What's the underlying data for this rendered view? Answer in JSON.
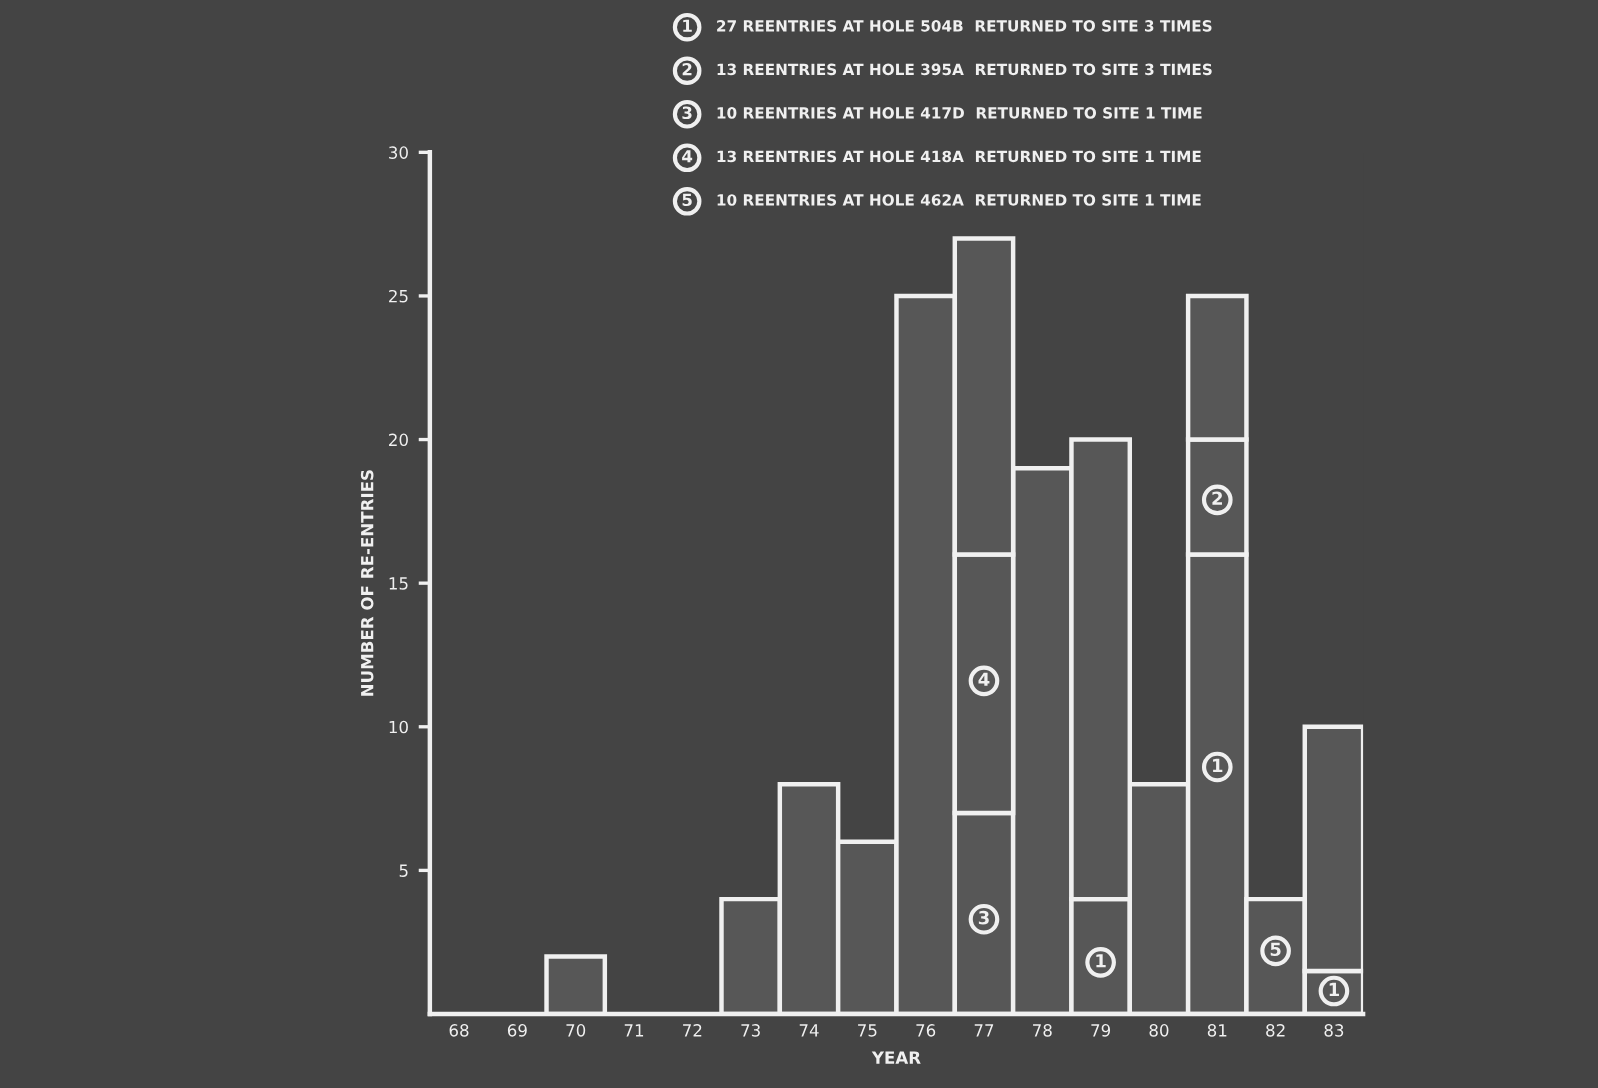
{
  "chart_data": {
    "type": "bar",
    "stacked": true,
    "xlabel": "YEAR",
    "ylabel": "NUMBER OF RE-ENTRIES",
    "categories": [
      "68",
      "69",
      "70",
      "71",
      "72",
      "73",
      "74",
      "75",
      "76",
      "77",
      "78",
      "79",
      "80",
      "81",
      "82",
      "83"
    ],
    "series": [
      {
        "color": "#575757",
        "values": [
          null,
          null,
          2,
          null,
          null,
          4,
          8,
          6,
          25,
          7,
          19,
          4,
          8,
          16,
          4,
          1.5
        ]
      },
      {
        "color": "#575757",
        "values": [
          null,
          null,
          null,
          null,
          null,
          null,
          null,
          null,
          null,
          9,
          null,
          16,
          null,
          4,
          null,
          8.5
        ]
      },
      {
        "color": "#575757",
        "values": [
          null,
          null,
          null,
          null,
          null,
          null,
          null,
          null,
          null,
          11,
          null,
          null,
          null,
          5,
          null,
          null
        ]
      }
    ],
    "ylim": [
      0,
      30
    ],
    "yticks": [
      5,
      10,
      15,
      20,
      25,
      30
    ],
    "grid": false,
    "legend": false,
    "annotations": [
      "1",
      "27 REENTRIES AT HOLE 504B  RETURNED TO SITE 3 TIMES",
      "2",
      "13 REENTRIES AT HOLE 395A  RETURNED TO SITE 3 TIMES",
      "3",
      "10 REENTRIES AT HOLE 417D  RETURNED TO SITE 1 TIME",
      "4",
      "13 REENTRIES AT HOLE 418A  RETURNED TO SITE 1 TIME",
      "5",
      "10 REENTRIES AT HOLE 462A  RETURNED TO SITE 1 TIME",
      {
        "text": "4",
        "x": "77",
        "y": 11.6
      },
      {
        "text": "3",
        "x": "77",
        "y": 3.3
      },
      {
        "text": "1",
        "x": "79",
        "y": 1.8
      },
      {
        "text": "2",
        "x": "81",
        "y": 17.9
      },
      {
        "text": "1",
        "x": "81",
        "y": 8.6
      },
      {
        "text": "5",
        "x": "82",
        "y": 2.2
      },
      {
        "text": "1",
        "x": "83",
        "y": 0.8
      }
    ]
  }
}
